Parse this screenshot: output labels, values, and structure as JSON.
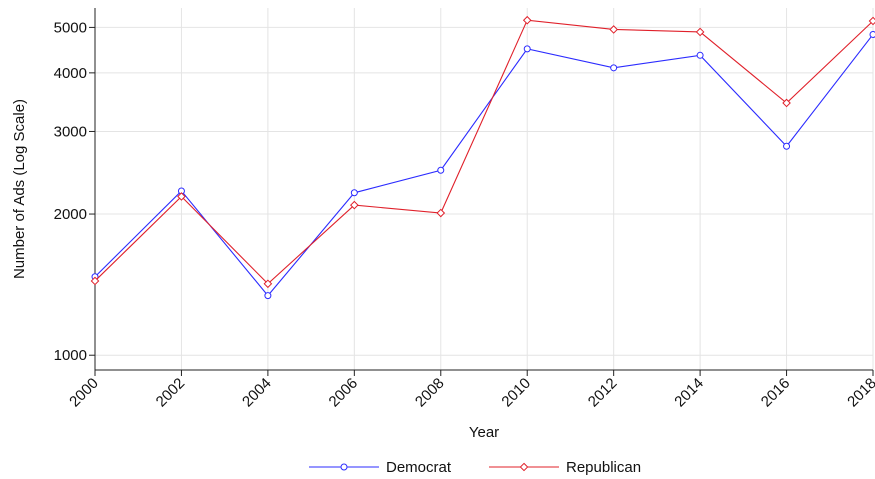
{
  "chart_data": {
    "type": "line",
    "xlabel": "Year",
    "ylabel": "Number of Ads (Log Scale)",
    "y_scale": "log",
    "ylim": [
      930,
      5500
    ],
    "xlim": [
      2000,
      2018
    ],
    "x": [
      2000,
      2002,
      2004,
      2006,
      2008,
      2010,
      2012,
      2014,
      2016,
      2018
    ],
    "x_tick_labels": [
      "2000",
      "2002",
      "2004",
      "2006",
      "2008",
      "2010",
      "2012",
      "2014",
      "2016",
      "2018"
    ],
    "y_ticks": [
      1000,
      2000,
      3000,
      4000,
      5000
    ],
    "y_tick_labels": [
      "1000",
      "2000",
      "3000",
      "4000",
      "5000"
    ],
    "grid": true,
    "legend_position": "bottom",
    "series": [
      {
        "name": "Democrat",
        "color": "#2b2bff",
        "marker": "circle",
        "values": [
          1470,
          2240,
          1340,
          2220,
          2480,
          4500,
          4100,
          4360,
          2790,
          4830
        ]
      },
      {
        "name": "Republican",
        "color": "#e0202a",
        "marker": "diamond",
        "values": [
          1440,
          2180,
          1420,
          2090,
          2010,
          5180,
          4950,
          4890,
          3450,
          5160
        ]
      }
    ]
  }
}
